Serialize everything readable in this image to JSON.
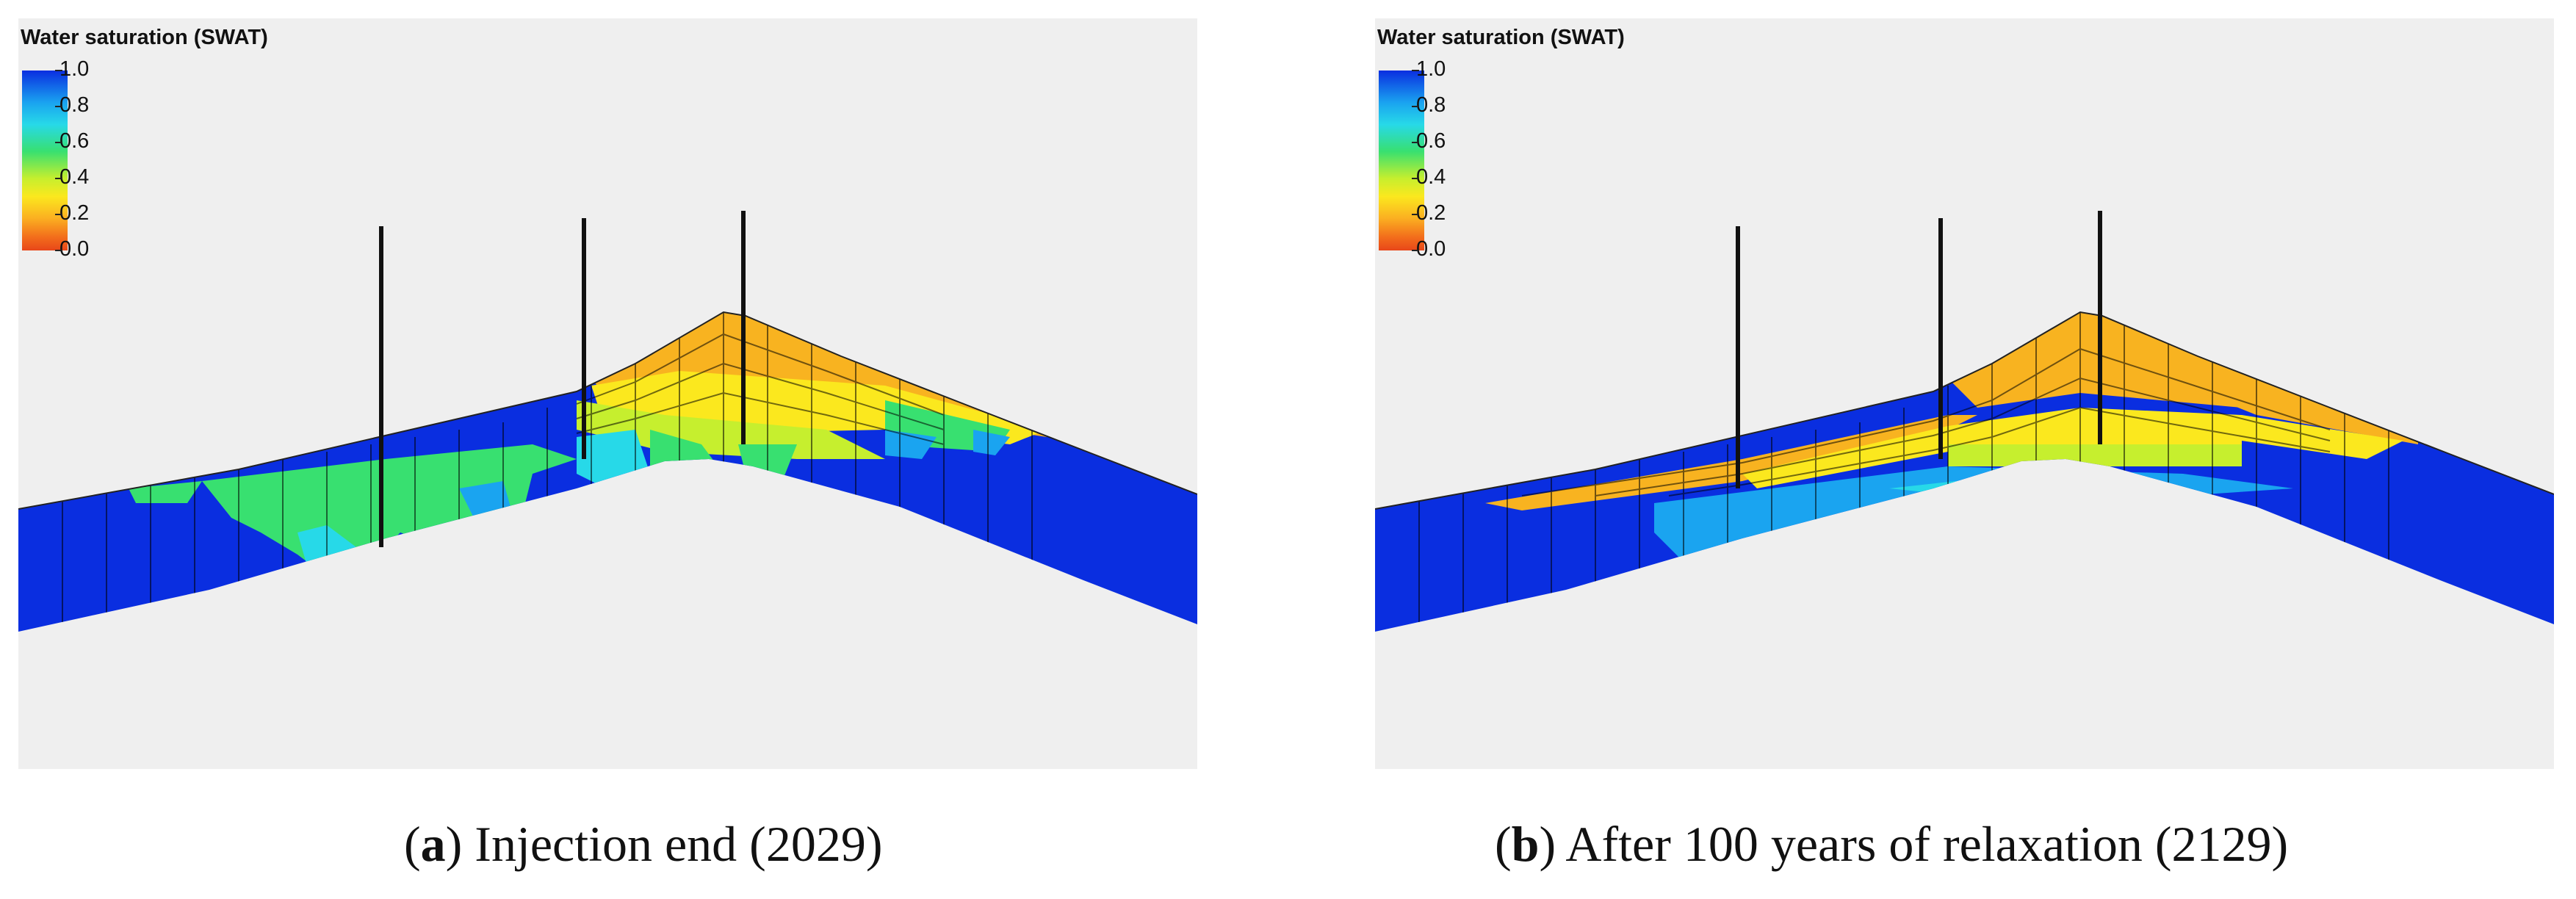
{
  "legend": {
    "title": "Water saturation (SWAT)",
    "ticks": [
      "1.0",
      "0.8",
      "0.6",
      "0.4",
      "0.2",
      "0.0"
    ]
  },
  "panels": [
    {
      "letter": "a",
      "caption": ") Injection end (2029)"
    },
    {
      "letter": "b",
      "caption": ") After 100 years of relaxation (2129)"
    }
  ],
  "colors": {
    "water_full": "#0a2ee0",
    "water_high": "#1aa4f0",
    "mid_green": "#38e070",
    "yellow_green": "#c6ef2e",
    "yellow": "#fbe81e",
    "orange": "#f8b320",
    "background": "#efefef"
  }
}
